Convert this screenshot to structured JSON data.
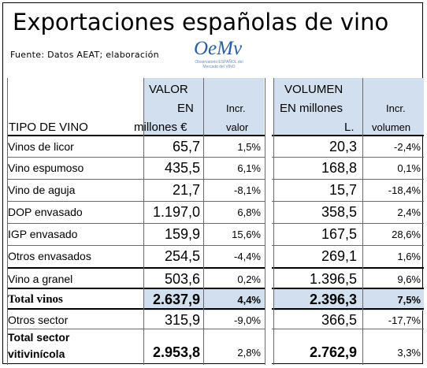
{
  "title": "Exportaciones españolas de vino",
  "source": "Fuente: Datos AEAT; elaboración",
  "logo": {
    "mark": "OeMv",
    "subtitle": "Observatorio ESPAÑOL del Mercado del VINO"
  },
  "headers": {
    "tipo": "TIPO DE VINO",
    "valor_1": "VALOR",
    "valor_2": "EN",
    "valor_3": "millones €",
    "incr_valor_1": "Incr.",
    "incr_valor_2": "valor",
    "volumen_1": "VOLUMEN",
    "volumen_2": "EN millones",
    "volumen_3": "L.",
    "incr_volumen_1": "Incr.",
    "incr_volumen_2": "volumen"
  },
  "rows": [
    {
      "tipo": "Vinos de licor",
      "valor": "65,7",
      "incr_valor": "1,5%",
      "volumen": "20,3",
      "incr_volumen": "-2,4%"
    },
    {
      "tipo": "Vino espumoso",
      "valor": "435,5",
      "incr_valor": "6,1%",
      "volumen": "168,8",
      "incr_volumen": "0,1%"
    },
    {
      "tipo": "Vino de aguja",
      "valor": "21,7",
      "incr_valor": "-8,1%",
      "volumen": "15,7",
      "incr_volumen": "-18,4%"
    },
    {
      "tipo": "DOP envasado",
      "valor": "1.197,0",
      "incr_valor": "6,8%",
      "volumen": "358,5",
      "incr_volumen": "2,4%"
    },
    {
      "tipo": "IGP envasado",
      "valor": "159,9",
      "incr_valor": "15,6%",
      "volumen": "167,5",
      "incr_volumen": "28,6%"
    },
    {
      "tipo": "Otros envasados",
      "valor": "254,5",
      "incr_valor": "-4,4%",
      "volumen": "269,1",
      "incr_volumen": "1,6%"
    },
    {
      "tipo": "Vino a granel",
      "valor": "503,6",
      "incr_valor": "0,2%",
      "volumen": "1.396,5",
      "incr_volumen": "9,6%"
    },
    {
      "tipo": "Total vinos",
      "valor": "2.637,9",
      "incr_valor": "4,4%",
      "volumen": "2.396,3",
      "incr_volumen": "7,5%"
    },
    {
      "tipo": "Otros sector",
      "valor": "315,9",
      "incr_valor": "-9,0%",
      "volumen": "366,5",
      "incr_volumen": "-17,7%"
    },
    {
      "tipo_1": "Total sector",
      "tipo_2": "vitivinícola",
      "valor": "2.953,8",
      "incr_valor": "2,8%",
      "volumen": "2.762,9",
      "incr_volumen": "3,3%"
    }
  ],
  "colors": {
    "header_shade": "#d2dfee",
    "logo_blue": "#2b5e9e"
  }
}
